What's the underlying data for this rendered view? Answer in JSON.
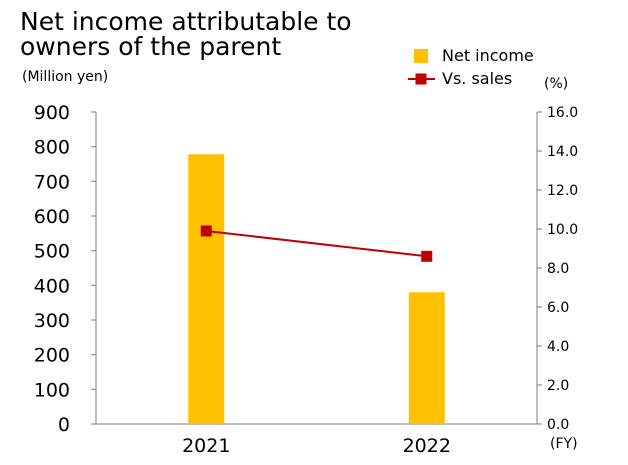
{
  "chart_data": {
    "type": "bar",
    "title_lines": [
      "Net income attributable to",
      "owners of the parent"
    ],
    "left_unit": "(Million yen)",
    "right_unit": "(%)",
    "x_unit": "(FY)",
    "categories": [
      "2021",
      "2022"
    ],
    "series": [
      {
        "name": "Net income",
        "type": "bar",
        "axis": "left",
        "values": [
          778,
          380
        ]
      },
      {
        "name": "Vs. sales",
        "type": "line",
        "axis": "right",
        "values": [
          9.9,
          8.6
        ]
      }
    ],
    "ylim_left": [
      0,
      900
    ],
    "yticks_left": [
      "0",
      "100",
      "200",
      "300",
      "400",
      "500",
      "600",
      "700",
      "800",
      "900"
    ],
    "ylim_right": [
      0,
      16
    ],
    "yticks_right": [
      "0.0",
      "2.0",
      "4.0",
      "6.0",
      "8.0",
      "10.0",
      "12.0",
      "14.0",
      "16.0"
    ],
    "grid": false,
    "legend_position": "top-right",
    "colors": {
      "bar": "#FFC000",
      "line": "#C00000"
    }
  }
}
